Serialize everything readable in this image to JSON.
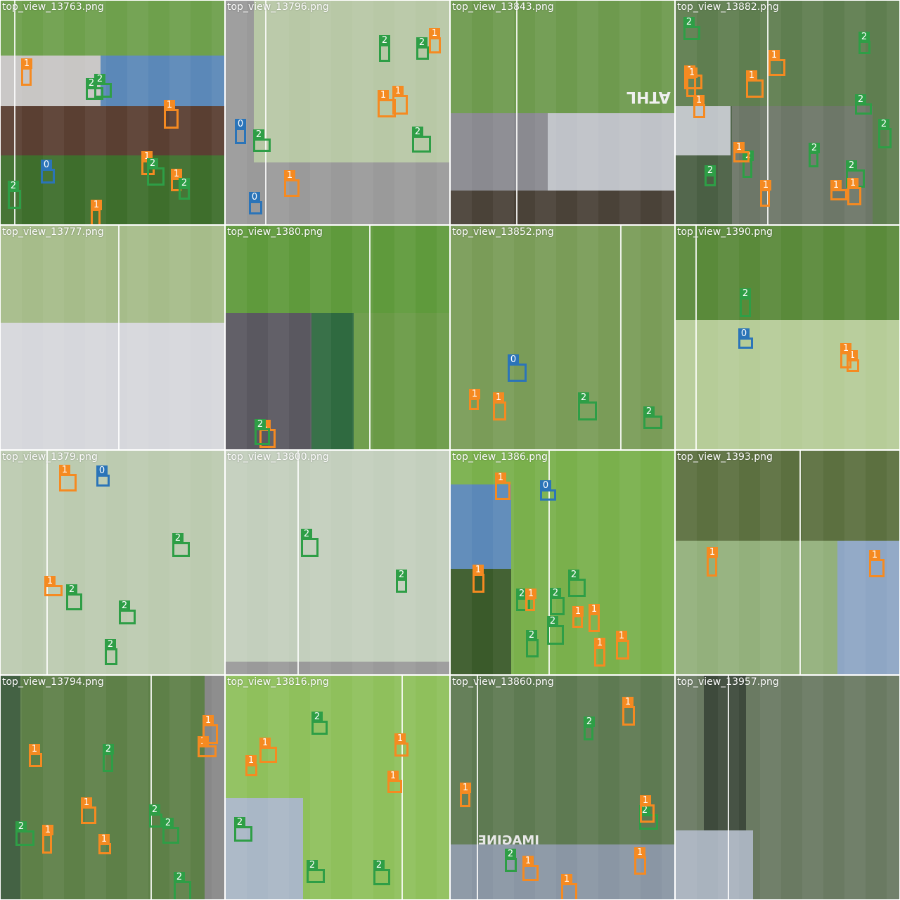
{
  "palette": {
    "class_0": "#2b74b8",
    "class_1": "#f58a21",
    "class_2": "#2e9e46",
    "label_text": "#ffffff"
  },
  "tiles": [
    {
      "filename": "top_view_13763.png",
      "scene": "mosaic-field-sky",
      "detections": [
        "2",
        "1",
        "2",
        "2",
        "1",
        "1",
        "1",
        "0",
        "2",
        "1",
        "2"
      ]
    },
    {
      "filename": "top_view_13796.png",
      "scene": "gray-field",
      "detections": [
        "1",
        "0",
        "0",
        "2",
        "1",
        "1",
        "2",
        "2",
        "1",
        "2"
      ]
    },
    {
      "filename": "top_view_13843.png",
      "scene": "field-sky",
      "detections": []
    },
    {
      "filename": "top_view_13882.png",
      "scene": "dark-field-mosaic",
      "detections": [
        "1",
        "2",
        "2",
        "2",
        "1",
        "1",
        "2",
        "1",
        "2",
        "1",
        "1",
        "1",
        "2",
        "1",
        "2",
        "2",
        "1"
      ]
    },
    {
      "filename": "top_view_13777.png",
      "scene": "sky-field",
      "detections": []
    },
    {
      "filename": "top_view_1380.png",
      "scene": "field-stadium",
      "detections": [
        "1",
        "2"
      ]
    },
    {
      "filename": "top_view_13852.png",
      "scene": "plain-field",
      "detections": [
        "1",
        "2",
        "0",
        "1",
        "2"
      ]
    },
    {
      "filename": "top_view_1390.png",
      "scene": "field-goal",
      "detections": [
        "1",
        "2",
        "1",
        "0"
      ]
    },
    {
      "filename": "top_view_1379.png",
      "scene": "light-field",
      "detections": [
        "2",
        "1",
        "0",
        "2",
        "1",
        "2",
        "2"
      ]
    },
    {
      "filename": "top_view_13800.png",
      "scene": "light-field-lines",
      "detections": [
        "2",
        "2"
      ]
    },
    {
      "filename": "top_view_1386.png",
      "scene": "center-circle",
      "detections": [
        "2",
        "1",
        "0",
        "2",
        "1",
        "2",
        "1",
        "1",
        "2",
        "2",
        "1",
        "1",
        "1"
      ]
    },
    {
      "filename": "top_view_1393.png",
      "scene": "field-sky-corner",
      "detections": [
        "1",
        "1"
      ]
    },
    {
      "filename": "top_view_13794.png",
      "scene": "dark-field",
      "detections": [
        "2",
        "1",
        "1",
        "2",
        "1",
        "2",
        "1",
        "2",
        "1",
        "2",
        "1"
      ]
    },
    {
      "filename": "top_view_13816.png",
      "scene": "bright-field",
      "detections": [
        "1",
        "2",
        "1",
        "2",
        "2",
        "1",
        "2",
        "1"
      ]
    },
    {
      "filename": "top_view_13860.png",
      "scene": "dark-field-sky",
      "detections": [
        "1",
        "1",
        "1",
        "2",
        "2",
        "1",
        "1",
        "1",
        "2"
      ]
    },
    {
      "filename": "top_view_13957.png",
      "scene": "goal-mosaic",
      "detections": []
    }
  ],
  "overlay_texts": [
    "IMAGINE",
    "ATHL"
  ]
}
